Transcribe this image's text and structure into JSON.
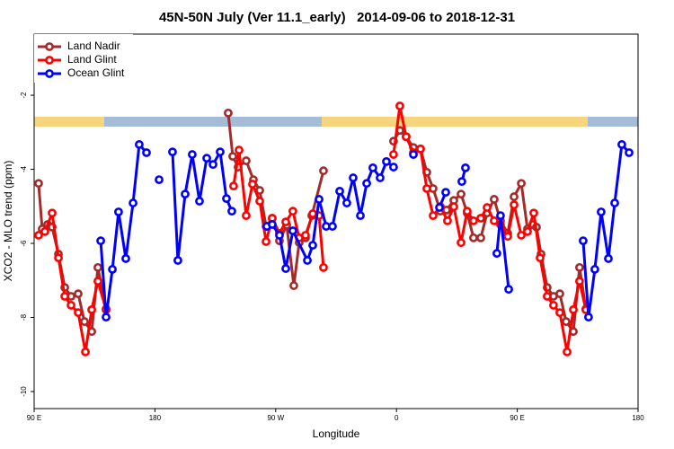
{
  "chart_data": {
    "type": "line",
    "title": "45N-50N July (Ver 11.1_early)   2014-09-06 to 2018-12-31",
    "xlabel": "Longitude",
    "ylabel": "XCO2 - MLO trend (ppm)",
    "xlim": [
      90,
      540
    ],
    "ylim": [
      -10.46,
      -0.35
    ],
    "xticks": [
      {
        "value": 90,
        "label": "90 E"
      },
      180,
      {
        "value": 270,
        "label": "90 W"
      },
      {
        "value": 360,
        "label": "0"
      },
      {
        "value": 450,
        "label": "90 E"
      },
      {
        "value": 540,
        "label": "180"
      }
    ],
    "yticks": [
      -10,
      -8,
      -6,
      -4,
      -2
    ],
    "legend": "upper left",
    "series": [
      {
        "name": "Land Nadir",
        "color": "#a52a2a",
        "x": [
          93.3,
          96.0,
          100.0,
          103.4,
          108.1,
          112.8,
          117.5,
          122.8,
          127.5,
          132.9,
          137.5,
          143.6,
          null,
          234.6,
          238.0,
          242.0,
          248.0,
          253.4,
          258.1,
          262.8,
          267.4,
          272.8,
          278.2,
          283.5,
          287.5,
          292.2,
          296.9,
          305.6,
          null,
          357.8,
          362.5,
          367.2,
          372.6,
          377.9,
          382.6,
          387.3,
          392.7,
          397.3,
          402.7,
          408.1,
          412.7,
          417.4,
          422.8,
          427.5,
          432.8,
          437.5,
          442.9,
          447.6,
          453.0,
          457.6,
          461.6,
          464.3,
          467.7,
          472.3,
          477.0,
          481.7,
          486.4,
          491.8,
          496.4,
          501.1
        ],
        "values": [
          -4.38,
          -5.61,
          -5.49,
          -5.56,
          -6.29,
          -7.19,
          -7.43,
          -7.36,
          -8.11,
          -8.38,
          -6.65,
          -7.77,
          null,
          -2.48,
          -3.65,
          -3.94,
          -3.77,
          -4.28,
          -4.57,
          -5.54,
          -5.32,
          -5.93,
          -5.51,
          -7.14,
          -5.98,
          -5.85,
          -5.25,
          -4.04,
          null,
          -3.24,
          -2.95,
          -3.12,
          -3.41,
          -3.45,
          -4.08,
          -4.52,
          -5.13,
          -5.1,
          -4.84,
          -4.67,
          -5.18,
          -5.85,
          -5.85,
          -5.18,
          -4.81,
          -5.39,
          -5.73,
          -4.74,
          -4.38,
          -5.61,
          -5.49,
          -5.56,
          -6.29,
          -7.19,
          -7.43,
          -7.36,
          -8.11,
          -8.38,
          -6.65,
          -7.77
        ]
      },
      {
        "name": "Land Glint",
        "color": "#ff0000",
        "x": [
          93.3,
          98.0,
          103.4,
          108.1,
          112.8,
          117.5,
          122.8,
          128.2,
          132.9,
          137.5,
          143.6,
          null,
          238.6,
          242.7,
          248.0,
          252.7,
          258.1,
          262.8,
          267.4,
          272.8,
          277.5,
          282.8,
          287.5,
          292.2,
          297.6,
          302.3,
          305.6,
          null,
          357.8,
          362.5,
          367.2,
          372.6,
          377.9,
          382.6,
          387.3,
          392.7,
          398.0,
          402.7,
          408.1,
          412.7,
          417.4,
          422.8,
          427.5,
          432.8,
          437.5,
          442.9,
          447.6,
          453.0,
          457.6,
          462.3,
          467.0,
          472.3,
          477.0,
          481.7,
          487.1,
          491.8,
          496.4,
          501.1
        ],
        "values": [
          -5.78,
          -5.68,
          -5.18,
          -6.39,
          -7.43,
          -7.67,
          -7.87,
          -8.93,
          -7.79,
          -7.02,
          -7.79,
          null,
          -4.45,
          -3.48,
          -5.25,
          -4.4,
          -4.86,
          -5.95,
          -5.32,
          -5.73,
          -5.42,
          -5.13,
          -5.85,
          -5.78,
          -5.2,
          -5.25,
          -6.65,
          null,
          -3.6,
          -2.29,
          -3.12,
          -3.55,
          -3.45,
          -4.52,
          -5.25,
          -5.01,
          -5.39,
          -5.01,
          -5.98,
          -5.13,
          -5.39,
          -5.32,
          -5.03,
          -5.39,
          -5.49,
          -5.81,
          -4.96,
          -5.78,
          -5.68,
          -5.18,
          -6.39,
          -7.43,
          -7.67,
          -7.87,
          -8.93,
          -7.79,
          -7.02,
          -7.79
        ]
      },
      {
        "name": "Ocean Glint",
        "color": "#0000ff",
        "x": [
          139.6,
          143.6,
          148.3,
          152.9,
          158.3,
          163.7,
          168.3,
          173.7,
          null,
          183.1,
          null,
          193.1,
          197.1,
          202.5,
          207.8,
          213.2,
          218.6,
          223.3,
          228.6,
          233.3,
          237.3,
          null,
          263.4,
          267.4,
          272.8,
          277.5,
          282.8,
          293.6,
          297.6,
          302.3,
          307.6,
          312.3,
          317.7,
          323.0,
          327.7,
          333.1,
          337.8,
          342.4,
          347.8,
          352.5,
          357.8,
          null,
          372.6,
          null,
          392.0,
          396.7,
          null,
          408.7,
          411.4,
          null,
          434.8,
          437.5,
          443.6,
          null,
          499.1,
          503.1,
          507.8,
          512.5,
          517.9,
          522.6,
          527.9,
          533.3
        ],
        "values": [
          -5.93,
          -7.99,
          -6.7,
          -5.15,
          -6.41,
          -4.91,
          -3.33,
          -3.55,
          null,
          -4.28,
          null,
          -3.53,
          -6.46,
          -4.67,
          -3.6,
          -4.86,
          -3.7,
          -3.87,
          -3.53,
          -4.79,
          -5.13,
          null,
          -5.54,
          -5.49,
          -5.78,
          -6.68,
          -5.66,
          -6.46,
          -6.05,
          -4.81,
          -5.54,
          -5.54,
          -4.59,
          -4.91,
          -4.23,
          -5.25,
          -4.38,
          -3.96,
          -4.23,
          -3.79,
          -3.94,
          null,
          -3.6,
          null,
          -5.03,
          -4.62,
          null,
          -4.33,
          -3.96,
          null,
          -6.27,
          -5.25,
          -7.24,
          null,
          -5.93,
          -7.99,
          -6.7,
          -5.15,
          -6.41,
          -4.91,
          -3.33,
          -3.55
        ]
      }
    ]
  }
}
